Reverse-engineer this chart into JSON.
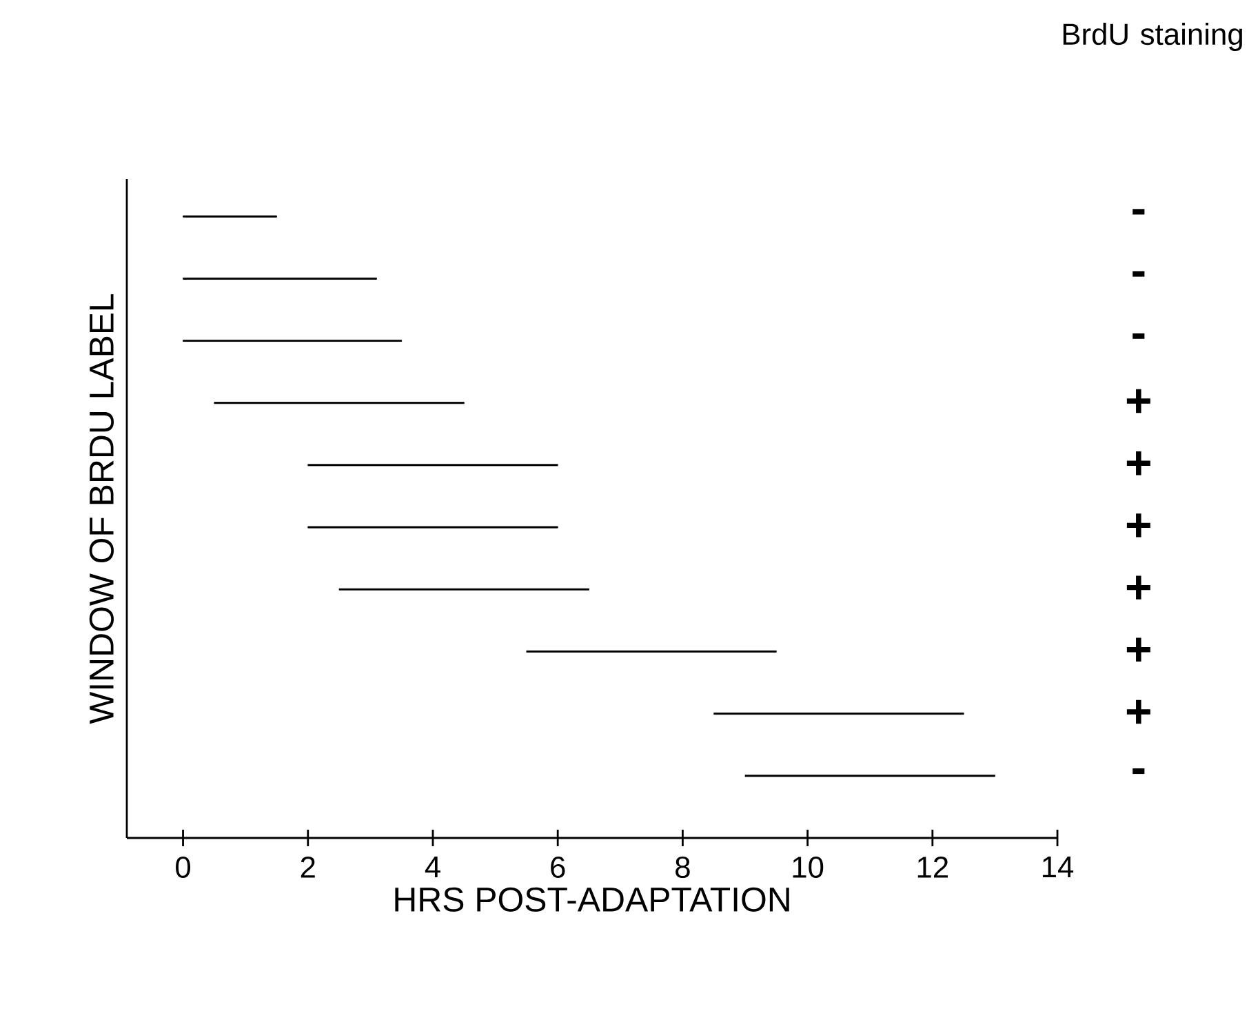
{
  "chart_data": {
    "type": "bar",
    "orientation": "horizontal",
    "xlabel": "HRS POST-ADAPTATION",
    "ylabel": "WINDOW OF BRDU LABEL",
    "annotations": [
      "BrdU staining"
    ],
    "categories": [
      null,
      null,
      null,
      null,
      null,
      null,
      null,
      null,
      null,
      null
    ],
    "base": [
      0,
      0,
      0,
      0.5,
      2,
      2,
      2.5,
      5.5,
      8.5,
      9
    ],
    "values": [
      1.5,
      3.1,
      3.5,
      4,
      4,
      4,
      4,
      4,
      4,
      4
    ],
    "value_labels": [
      "-",
      "-",
      "-",
      "+",
      "+",
      "+",
      "+",
      "+",
      "+",
      "-"
    ],
    "color": "#000000",
    "xlim": [
      -0.9,
      14
    ],
    "xticks": [
      0,
      2,
      4,
      6,
      8,
      10,
      12,
      14
    ],
    "tick_labels": "x"
  }
}
